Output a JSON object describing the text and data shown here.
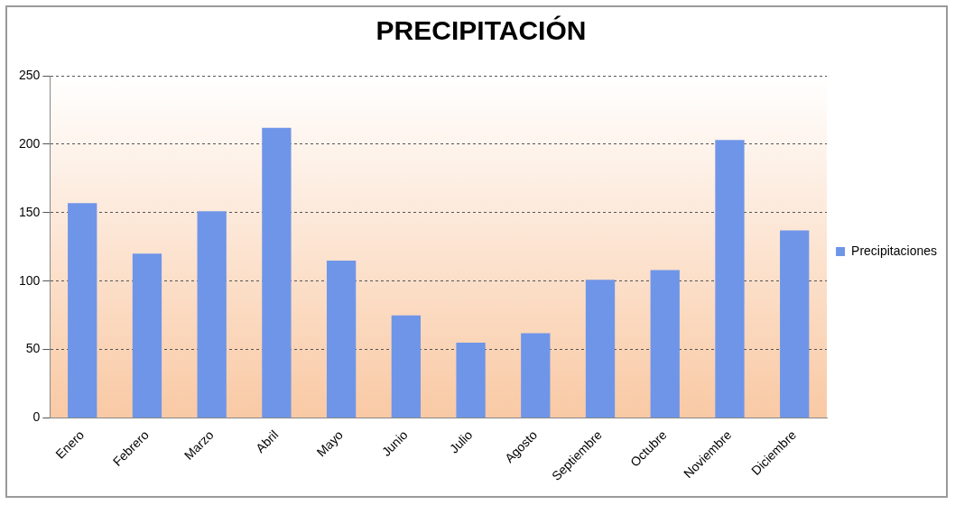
{
  "chart_data": {
    "type": "bar",
    "title": "PRECIPITACIÓN",
    "categories": [
      "Enero",
      "Febrero",
      "Marzo",
      "Abril",
      "Mayo",
      "Junio",
      "Julio",
      "Agosto",
      "Septiembre",
      "Octubre",
      "Noviembre",
      "Diciembre"
    ],
    "series": [
      {
        "name": "Precipitaciones",
        "color": "#6f95e8",
        "values": [
          157,
          120,
          151,
          212,
          115,
          75,
          55,
          62,
          101,
          108,
          203,
          137
        ]
      }
    ],
    "ylim": [
      0,
      250
    ],
    "yticks": [
      0,
      50,
      100,
      150,
      200,
      250
    ],
    "grid": "y",
    "legend": "right"
  }
}
